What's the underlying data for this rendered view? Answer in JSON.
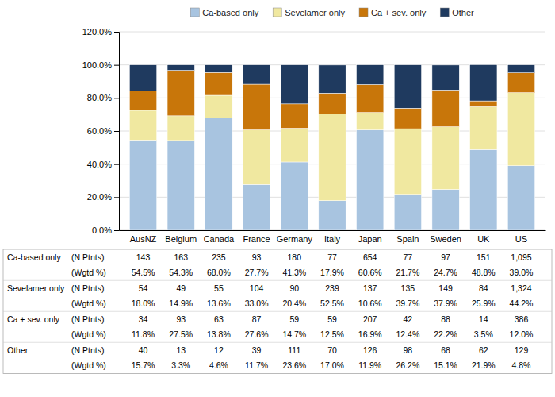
{
  "chart_data": {
    "type": "bar",
    "stacked": true,
    "grid": true,
    "legend": "top",
    "categories": [
      "AusNZ",
      "Belgium",
      "Canada",
      "France",
      "Germany",
      "Italy",
      "Japan",
      "Spain",
      "Sweden",
      "UK",
      "US"
    ],
    "series": [
      {
        "name": "Ca-based only",
        "color": "#a8c4e0",
        "values": [
          54.5,
          54.3,
          68.0,
          27.7,
          41.3,
          17.9,
          60.6,
          21.7,
          24.7,
          48.8,
          39.0
        ],
        "value_labels": [
          "54.5%",
          "54.3%",
          "68.0%",
          "27.7%",
          "41.3%",
          "17.9%",
          "60.6%",
          "21.7%",
          "24.7%",
          "48.8%",
          "39.0%"
        ],
        "counts": [
          143,
          163,
          235,
          93,
          180,
          77,
          654,
          77,
          97,
          151,
          {
            "value": 1095,
            "label": "1,095"
          }
        ]
      },
      {
        "name": "Sevelamer only",
        "color": "#f0e8a0",
        "values": [
          18.0,
          14.9,
          13.6,
          33.0,
          20.4,
          52.5,
          10.6,
          39.7,
          37.9,
          25.9,
          44.2
        ],
        "value_labels": [
          "18.0%",
          "14.9%",
          "13.6%",
          "33.0%",
          "20.4%",
          "52.5%",
          "10.6%",
          "39.7%",
          "37.9%",
          "25.9%",
          "44.2%"
        ],
        "counts": [
          54,
          49,
          55,
          104,
          90,
          239,
          137,
          135,
          149,
          84,
          {
            "value": 1324,
            "label": "1,324"
          }
        ]
      },
      {
        "name": "Ca + sev. only",
        "color": "#c8760a",
        "values": [
          11.8,
          27.5,
          13.8,
          27.6,
          14.7,
          12.5,
          16.9,
          12.4,
          22.2,
          3.5,
          12.0
        ],
        "value_labels": [
          "11.8%",
          "27.5%",
          "13.8%",
          "27.6%",
          "14.7%",
          "12.5%",
          "16.9%",
          "12.4%",
          "22.2%",
          "3.5%",
          "12.0%"
        ],
        "counts": [
          34,
          93,
          63,
          87,
          59,
          59,
          207,
          42,
          88,
          14,
          386
        ]
      },
      {
        "name": "Other",
        "color": "#1f3a5f",
        "values": [
          15.7,
          3.3,
          4.6,
          11.7,
          23.6,
          17.0,
          11.9,
          26.2,
          15.1,
          21.9,
          4.8
        ],
        "value_labels": [
          "15.7%",
          "3.3%",
          "4.6%",
          "11.7%",
          "23.6%",
          "17.0%",
          "11.9%",
          "26.2%",
          "15.1%",
          "21.9%",
          "4.8%"
        ],
        "counts": [
          40,
          13,
          12,
          39,
          111,
          70,
          126,
          98,
          68,
          62,
          129
        ]
      }
    ],
    "table_row_labels": [
      "(N Ptnts)",
      "(Wgtd %)"
    ],
    "ylim": [
      0,
      120
    ],
    "yticks": [
      {
        "value": 0,
        "label": "0.0%"
      },
      {
        "value": 20,
        "label": "20.0%"
      },
      {
        "value": 40,
        "label": "40.0%"
      },
      {
        "value": 60,
        "label": "60.0%"
      },
      {
        "value": 80,
        "label": "80.0%"
      },
      {
        "value": 100,
        "label": "100.0%"
      },
      {
        "value": 120,
        "label": "120.0%"
      }
    ]
  }
}
